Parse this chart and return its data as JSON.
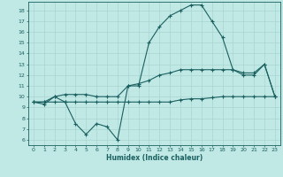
{
  "xlabel": "Humidex (Indice chaleur)",
  "bg_color": "#c0e8e4",
  "grid_color": "#a8d4d0",
  "line_color": "#1a6060",
  "xlim": [
    -0.5,
    23.5
  ],
  "ylim": [
    5.5,
    18.8
  ],
  "x": [
    0,
    1,
    2,
    3,
    4,
    5,
    6,
    7,
    8,
    9,
    10,
    11,
    12,
    13,
    14,
    15,
    16,
    17,
    18,
    19,
    20,
    21,
    22,
    23
  ],
  "line1": [
    9.5,
    9.3,
    10.0,
    9.5,
    7.5,
    6.5,
    7.5,
    7.2,
    6.0,
    11.0,
    11.0,
    15.0,
    16.5,
    17.5,
    18.0,
    18.5,
    18.5,
    17.0,
    15.5,
    12.5,
    12.0,
    12.0,
    13.0,
    10.0
  ],
  "line2": [
    9.5,
    9.5,
    10.0,
    10.2,
    10.2,
    10.2,
    10.0,
    10.0,
    10.0,
    11.0,
    11.2,
    11.5,
    12.0,
    12.2,
    12.5,
    12.5,
    12.5,
    12.5,
    12.5,
    12.5,
    12.2,
    12.2,
    13.0,
    10.0
  ],
  "line3": [
    9.5,
    9.5,
    9.5,
    9.5,
    9.5,
    9.5,
    9.5,
    9.5,
    9.5,
    9.5,
    9.5,
    9.5,
    9.5,
    9.5,
    9.7,
    9.8,
    9.8,
    9.9,
    10.0,
    10.0,
    10.0,
    10.0,
    10.0,
    10.0
  ],
  "yticks": [
    6,
    7,
    8,
    9,
    10,
    11,
    12,
    13,
    14,
    15,
    16,
    17,
    18
  ],
  "xticks": [
    0,
    1,
    2,
    3,
    4,
    5,
    6,
    7,
    8,
    9,
    10,
    11,
    12,
    13,
    14,
    15,
    16,
    17,
    18,
    19,
    20,
    21,
    22,
    23
  ]
}
